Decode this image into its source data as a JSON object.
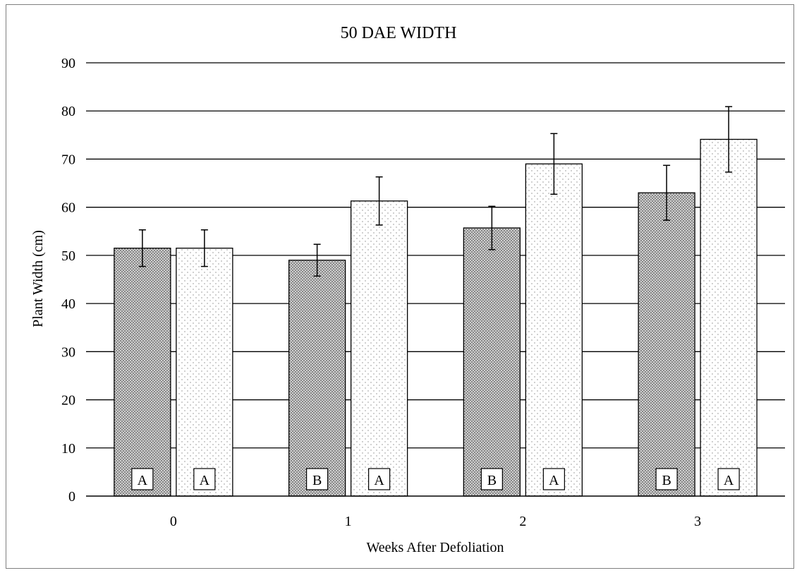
{
  "chart_data": {
    "type": "bar",
    "title": "50 DAE WIDTH",
    "xlabel": "Weeks After Defoliation",
    "ylabel": "Plant Width (cm)",
    "categories": [
      "0",
      "1",
      "2",
      "3"
    ],
    "ylim": [
      0,
      90
    ],
    "yticks": [
      "0",
      "10",
      "20",
      "30",
      "40",
      "50",
      "60",
      "70",
      "80",
      "90"
    ],
    "grid": true,
    "legend": "none",
    "series": [
      {
        "values": [
          51.5,
          49.0,
          55.7,
          63.0
        ],
        "error": [
          3.8,
          3.3,
          4.5,
          5.7
        ],
        "letters": [
          "A",
          "B",
          "B",
          "B"
        ],
        "fill_color": "#bfbfbf",
        "pattern": "dense-dots"
      },
      {
        "values": [
          51.5,
          61.3,
          69.0,
          74.1
        ],
        "error": [
          3.8,
          5.0,
          6.3,
          6.8
        ],
        "letters": [
          "A",
          "A",
          "A",
          "A"
        ],
        "fill_color": "#ffffff",
        "pattern": "sparse-dots"
      }
    ]
  }
}
